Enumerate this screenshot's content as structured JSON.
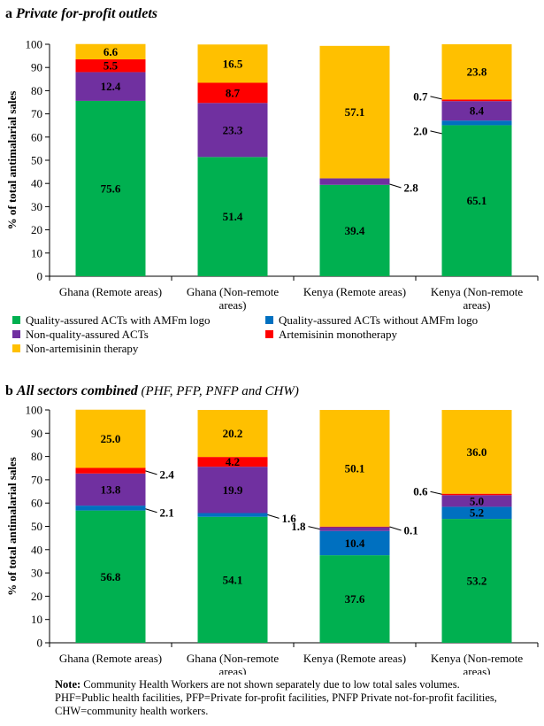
{
  "colors": {
    "qa_amfm": "#00b050",
    "qa_no_amfm": "#0070c0",
    "non_qa_act": "#7030a0",
    "amt": "#ff0000",
    "non_art": "#ffc000"
  },
  "legend": [
    {
      "key": "qa_amfm",
      "label": "Quality-assured ACTs with AMFm logo"
    },
    {
      "key": "qa_no_amfm",
      "label": "Quality-assured ACTs without AMFm logo"
    },
    {
      "key": "non_qa_act",
      "label": "Non-quality-assured ACTs"
    },
    {
      "key": "amt",
      "label": "Artemisinin monotherapy"
    },
    {
      "key": "non_art",
      "label": "Non-artemisinin therapy"
    }
  ],
  "note": {
    "bold": "Note:",
    "line1": " Community Health Workers are not shown separately due to low total sales volumes.",
    "line2": "PHF=Public health facilities, PFP=Private for-profit facilities, PNFP Private not-for-profit facilities,",
    "line3": "CHW=community health workers."
  },
  "chart_data": [
    {
      "type": "bar",
      "stacked": true,
      "panel_letter": "a",
      "title": "Private for-profit outlets",
      "subtitle": "",
      "ylabel": "% of total antimalarial sales",
      "ylim": [
        0,
        100
      ],
      "yticks": [
        0,
        10,
        20,
        30,
        40,
        50,
        60,
        70,
        80,
        90,
        100
      ],
      "categories": [
        [
          "Ghana (Remote areas)"
        ],
        [
          "Ghana (Non-remote",
          "areas)"
        ],
        [
          "Kenya (Remote areas)"
        ],
        [
          "Kenya (Non-remote",
          "areas)"
        ]
      ],
      "series": [
        {
          "key": "qa_amfm",
          "name": "Quality-assured ACTs with AMFm logo",
          "values": [
            75.6,
            51.4,
            39.4,
            65.1
          ]
        },
        {
          "key": "qa_no_amfm",
          "name": "Quality-assured ACTs without AMFm logo",
          "values": [
            0,
            0,
            0,
            2.0
          ]
        },
        {
          "key": "non_qa_act",
          "name": "Non-quality-assured ACTs",
          "values": [
            12.4,
            23.3,
            2.8,
            8.4
          ]
        },
        {
          "key": "amt",
          "name": "Artemisinin monotherapy",
          "values": [
            5.5,
            8.7,
            0,
            0.7
          ]
        },
        {
          "key": "non_art",
          "name": "Non-artemisinin therapy",
          "values": [
            6.6,
            16.5,
            57.1,
            23.8
          ]
        }
      ],
      "labels": [
        {
          "cat": 0,
          "series": 0,
          "text": "75.6"
        },
        {
          "cat": 0,
          "series": 2,
          "text": "12.4"
        },
        {
          "cat": 0,
          "series": 3,
          "text": "5.5"
        },
        {
          "cat": 0,
          "series": 4,
          "text": "6.6"
        },
        {
          "cat": 1,
          "series": 0,
          "text": "51.4"
        },
        {
          "cat": 1,
          "series": 2,
          "text": "23.3"
        },
        {
          "cat": 1,
          "series": 3,
          "text": "8.7"
        },
        {
          "cat": 1,
          "series": 4,
          "text": "16.5"
        },
        {
          "cat": 2,
          "series": 0,
          "text": "39.4"
        },
        {
          "cat": 2,
          "series": 2,
          "text": "2.8",
          "callout": "right",
          "y": 39.7
        },
        {
          "cat": 2,
          "series": 4,
          "text": "57.1"
        },
        {
          "cat": 3,
          "series": 0,
          "text": "65.1"
        },
        {
          "cat": 3,
          "series": 1,
          "text": "2.0",
          "callout": "left",
          "y": 61.5
        },
        {
          "cat": 3,
          "series": 2,
          "text": "8.4"
        },
        {
          "cat": 3,
          "series": 3,
          "text": "0.7",
          "callout": "left",
          "y": 76.4
        },
        {
          "cat": 3,
          "series": 4,
          "text": "23.8"
        }
      ]
    },
    {
      "type": "bar",
      "stacked": true,
      "panel_letter": "b",
      "title": "All sectors combined",
      "subtitle": "(PHF, PFP, PNFP and CHW)",
      "ylabel": "% of total antimalarial sales",
      "ylim": [
        0,
        100
      ],
      "yticks": [
        0,
        10,
        20,
        30,
        40,
        50,
        60,
        70,
        80,
        90,
        100
      ],
      "categories": [
        [
          "Ghana (Remote areas)"
        ],
        [
          "Ghana (Non-remote",
          "areas)"
        ],
        [
          "Kenya (Remote areas)"
        ],
        [
          "Kenya (Non-remote",
          "areas)"
        ]
      ],
      "series": [
        {
          "key": "qa_amfm",
          "name": "Quality-assured ACTs with AMFm logo",
          "values": [
            56.8,
            54.1,
            37.6,
            53.2
          ]
        },
        {
          "key": "qa_no_amfm",
          "name": "Quality-assured ACTs without AMFm logo",
          "values": [
            2.1,
            1.6,
            10.4,
            5.2
          ]
        },
        {
          "key": "non_qa_act",
          "name": "Non-quality-assured ACTs",
          "values": [
            13.8,
            19.9,
            1.8,
            5.0
          ]
        },
        {
          "key": "amt",
          "name": "Artemisinin monotherapy",
          "values": [
            2.4,
            4.2,
            0.1,
            0.6
          ]
        },
        {
          "key": "non_art",
          "name": "Non-artemisinin therapy",
          "values": [
            25.0,
            20.2,
            50.1,
            36.0
          ]
        }
      ],
      "labels": [
        {
          "cat": 0,
          "series": 0,
          "text": "56.8"
        },
        {
          "cat": 0,
          "series": 1,
          "text": "2.1",
          "callout": "right",
          "y": 57.5
        },
        {
          "cat": 0,
          "series": 2,
          "text": "13.8"
        },
        {
          "cat": 0,
          "series": 3,
          "text": "2.4",
          "callout": "right",
          "y": 73.8
        },
        {
          "cat": 0,
          "series": 4,
          "text": "25.0"
        },
        {
          "cat": 1,
          "series": 0,
          "text": "54.1"
        },
        {
          "cat": 1,
          "series": 1,
          "text": "1.6",
          "callout": "right",
          "y": 55.0
        },
        {
          "cat": 1,
          "series": 2,
          "text": "19.9"
        },
        {
          "cat": 1,
          "series": 3,
          "text": "4.2"
        },
        {
          "cat": 1,
          "series": 4,
          "text": "20.2"
        },
        {
          "cat": 2,
          "series": 0,
          "text": "37.6"
        },
        {
          "cat": 2,
          "series": 1,
          "text": "10.4"
        },
        {
          "cat": 2,
          "series": 2,
          "text": "1.8",
          "callout": "left",
          "y": 48.8
        },
        {
          "cat": 2,
          "series": 3,
          "text": "0.1",
          "callout": "right",
          "y": 49.8
        },
        {
          "cat": 2,
          "series": 4,
          "text": "50.1"
        },
        {
          "cat": 3,
          "series": 0,
          "text": "53.2"
        },
        {
          "cat": 3,
          "series": 1,
          "text": "5.2"
        },
        {
          "cat": 3,
          "series": 2,
          "text": "5.0"
        },
        {
          "cat": 3,
          "series": 3,
          "text": "0.6",
          "callout": "left",
          "y": 63.8
        },
        {
          "cat": 3,
          "series": 4,
          "text": "36.0"
        }
      ]
    }
  ]
}
